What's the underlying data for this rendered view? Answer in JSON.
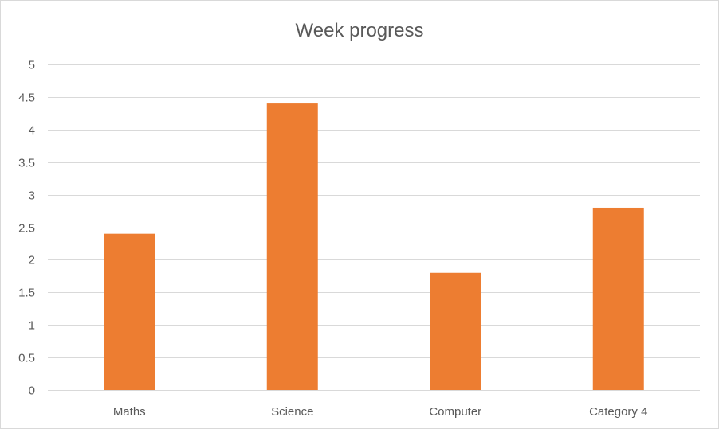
{
  "chart_data": {
    "type": "bar",
    "title": "Week progress",
    "categories": [
      "Maths",
      "Science",
      "Computer",
      "Category 4"
    ],
    "series": [
      {
        "values": [
          2.4,
          4.4,
          1.8,
          2.8
        ]
      }
    ],
    "y_ticks": [
      "0",
      "0.5",
      "1",
      "1.5",
      "2",
      "2.5",
      "3",
      "3.5",
      "4",
      "4.5",
      "5"
    ],
    "ylim": [
      0,
      5
    ],
    "grid": true,
    "legend": "none",
    "bar_color": "#ED7D31",
    "grid_color": "#D9D9D9",
    "text_color": "#595959"
  }
}
